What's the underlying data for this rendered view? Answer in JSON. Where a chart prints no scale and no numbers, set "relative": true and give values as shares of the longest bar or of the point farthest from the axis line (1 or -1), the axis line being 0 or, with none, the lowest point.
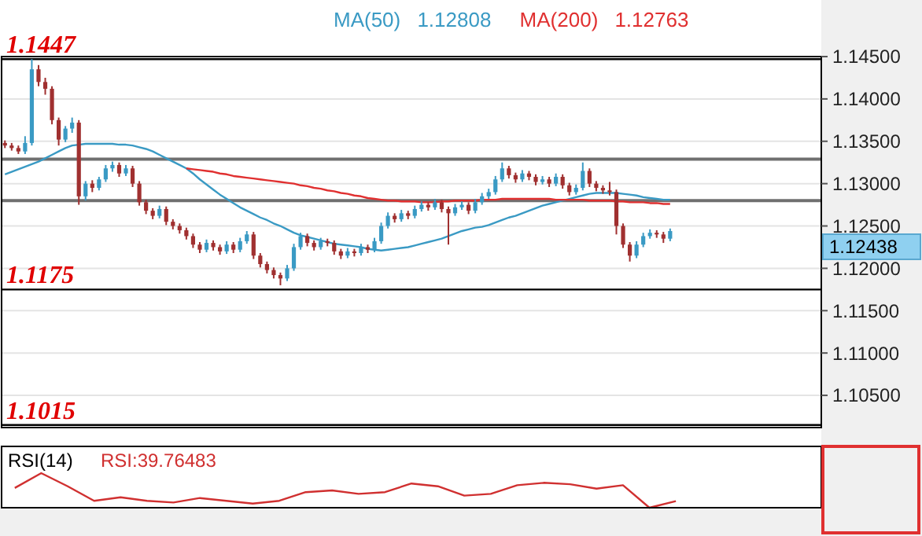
{
  "chart_data": [
    {
      "type": "candlestick",
      "legend": "top",
      "grid": "y",
      "tick_labels": "y",
      "categories": [
        null,
        null,
        null,
        null,
        null,
        null,
        null,
        null,
        null,
        null,
        null,
        null,
        null,
        null,
        null,
        null,
        null,
        null,
        null,
        null,
        null,
        null,
        null,
        null,
        null,
        null,
        null,
        null,
        null,
        null,
        null,
        null,
        null,
        null,
        null,
        null,
        null,
        null,
        null,
        null,
        null,
        null,
        null,
        null,
        null,
        null,
        null,
        null,
        null,
        null,
        null,
        null,
        null,
        null,
        null,
        null,
        null,
        null,
        null,
        null,
        null,
        null,
        null,
        null,
        null,
        null,
        null,
        null,
        null,
        null,
        null,
        null,
        null,
        null,
        null,
        null,
        null,
        null,
        null,
        null,
        null,
        null,
        null,
        null,
        null,
        null,
        null,
        null,
        null,
        null,
        null,
        null,
        null,
        null,
        null,
        null,
        null,
        null,
        null,
        null,
        null,
        null,
        null,
        null,
        null,
        null,
        null,
        null,
        null,
        null,
        null,
        null,
        null,
        null,
        null,
        null,
        null,
        null,
        null,
        null,
        null,
        null
      ],
      "ylim": [
        1.1012,
        1.145
      ],
      "yticks": [
        {
          "value": 1.145,
          "label": "1.14500"
        },
        {
          "value": 1.14,
          "label": "1.14000"
        },
        {
          "value": 1.135,
          "label": "1.13500"
        },
        {
          "value": 1.13,
          "label": "1.13000"
        },
        {
          "value": 1.125,
          "label": "1.12500"
        },
        {
          "value": 1.12,
          "label": "1.12000"
        },
        {
          "value": 1.115,
          "label": "1.11500"
        },
        {
          "value": 1.11,
          "label": "1.11000"
        },
        {
          "value": 1.105,
          "label": "1.10500"
        }
      ],
      "ohlc": [
        [
          1.1348,
          1.1351,
          1.1342,
          1.1345
        ],
        [
          1.1345,
          1.1348,
          1.1339,
          1.1342
        ],
        [
          1.1342,
          1.1345,
          1.1335,
          1.1338
        ],
        [
          1.1338,
          1.1356,
          1.1335,
          1.1348
        ],
        [
          1.1348,
          1.1447,
          1.1345,
          1.1435
        ],
        [
          1.1435,
          1.144,
          1.1415,
          1.142
        ],
        [
          1.142,
          1.1425,
          1.1405,
          1.1412
        ],
        [
          1.1412,
          1.1415,
          1.137,
          1.1375
        ],
        [
          1.1375,
          1.1378,
          1.1345,
          1.1352
        ],
        [
          1.1352,
          1.1368,
          1.1349,
          1.1365
        ],
        [
          1.1365,
          1.1378,
          1.136,
          1.1372
        ],
        [
          1.1372,
          1.1375,
          1.1275,
          1.1285
        ],
        [
          1.1285,
          1.1303,
          1.128,
          1.13
        ],
        [
          1.13,
          1.1304,
          1.129,
          1.1295
        ],
        [
          1.1295,
          1.1308,
          1.1292,
          1.1305
        ],
        [
          1.1305,
          1.1322,
          1.1302,
          1.1318
        ],
        [
          1.1318,
          1.1326,
          1.1314,
          1.1322
        ],
        [
          1.1322,
          1.1325,
          1.1308,
          1.1312
        ],
        [
          1.1312,
          1.1322,
          1.1309,
          1.1318
        ],
        [
          1.1318,
          1.1321,
          1.1296,
          1.13
        ],
        [
          1.13,
          1.1303,
          1.1274,
          1.1278
        ],
        [
          1.1278,
          1.1281,
          1.1264,
          1.1268
        ],
        [
          1.1268,
          1.1271,
          1.1258,
          1.1262
        ],
        [
          1.1262,
          1.1274,
          1.1259,
          1.127
        ],
        [
          1.127,
          1.1273,
          1.1251,
          1.1255
        ],
        [
          1.1255,
          1.1258,
          1.1246,
          1.125
        ],
        [
          1.125,
          1.1253,
          1.1241,
          1.1245
        ],
        [
          1.1245,
          1.1248,
          1.1234,
          1.1238
        ],
        [
          1.1238,
          1.1241,
          1.1224,
          1.1228
        ],
        [
          1.1228,
          1.1231,
          1.1218,
          1.1222
        ],
        [
          1.1222,
          1.1234,
          1.1219,
          1.123
        ],
        [
          1.123,
          1.1233,
          1.1221,
          1.1225
        ],
        [
          1.1225,
          1.1228,
          1.1216,
          1.122
        ],
        [
          1.122,
          1.1232,
          1.1217,
          1.1228
        ],
        [
          1.1228,
          1.1231,
          1.1218,
          1.1222
        ],
        [
          1.1222,
          1.1236,
          1.1219,
          1.1232
        ],
        [
          1.1232,
          1.1244,
          1.1229,
          1.124
        ],
        [
          1.124,
          1.1243,
          1.1211,
          1.1215
        ],
        [
          1.1215,
          1.1218,
          1.1201,
          1.1205
        ],
        [
          1.1205,
          1.1208,
          1.1194,
          1.1198
        ],
        [
          1.1198,
          1.1201,
          1.1188,
          1.1192
        ],
        [
          1.1192,
          1.1195,
          1.118,
          1.1188
        ],
        [
          1.1188,
          1.1204,
          1.1185,
          1.12
        ],
        [
          1.12,
          1.1229,
          1.1197,
          1.1225
        ],
        [
          1.1225,
          1.1242,
          1.1222,
          1.1238
        ],
        [
          1.1238,
          1.1241,
          1.1226,
          1.123
        ],
        [
          1.123,
          1.1233,
          1.1221,
          1.1225
        ],
        [
          1.1225,
          1.1236,
          1.1222,
          1.1232
        ],
        [
          1.1232,
          1.1235,
          1.1226,
          1.123
        ],
        [
          1.123,
          1.1233,
          1.1216,
          1.122
        ],
        [
          1.122,
          1.1223,
          1.1211,
          1.1215
        ],
        [
          1.1215,
          1.1224,
          1.1212,
          1.122
        ],
        [
          1.122,
          1.1223,
          1.1214,
          1.1218
        ],
        [
          1.1218,
          1.1229,
          1.1215,
          1.1225
        ],
        [
          1.1225,
          1.1228,
          1.1218,
          1.1222
        ],
        [
          1.1222,
          1.1236,
          1.1219,
          1.1232
        ],
        [
          1.1232,
          1.1254,
          1.1229,
          1.125
        ],
        [
          1.125,
          1.1266,
          1.1247,
          1.1262
        ],
        [
          1.1262,
          1.1265,
          1.1254,
          1.1258
        ],
        [
          1.1258,
          1.1269,
          1.1255,
          1.1265
        ],
        [
          1.1265,
          1.1268,
          1.1258,
          1.1262
        ],
        [
          1.1262,
          1.1274,
          1.1259,
          1.127
        ],
        [
          1.127,
          1.1279,
          1.1267,
          1.1275
        ],
        [
          1.1275,
          1.1278,
          1.1268,
          1.1272
        ],
        [
          1.1272,
          1.1282,
          1.1269,
          1.1278
        ],
        [
          1.1278,
          1.1281,
          1.1266,
          1.127
        ],
        [
          1.127,
          1.1273,
          1.1228,
          1.1265
        ],
        [
          1.1265,
          1.1276,
          1.1262,
          1.1272
        ],
        [
          1.1272,
          1.1279,
          1.1269,
          1.1275
        ],
        [
          1.1275,
          1.1278,
          1.1264,
          1.1268
        ],
        [
          1.1268,
          1.1282,
          1.1265,
          1.1278
        ],
        [
          1.1278,
          1.1289,
          1.1275,
          1.1285
        ],
        [
          1.1285,
          1.1294,
          1.1282,
          1.129
        ],
        [
          1.129,
          1.1309,
          1.1287,
          1.1305
        ],
        [
          1.1305,
          1.1325,
          1.1302,
          1.1318
        ],
        [
          1.1318,
          1.1321,
          1.1306,
          1.131
        ],
        [
          1.131,
          1.1313,
          1.1301,
          1.1305
        ],
        [
          1.1305,
          1.1316,
          1.1302,
          1.1312
        ],
        [
          1.1312,
          1.1315,
          1.1304,
          1.1308
        ],
        [
          1.1308,
          1.1311,
          1.1298,
          1.1302
        ],
        [
          1.1302,
          1.1309,
          1.1299,
          1.1305
        ],
        [
          1.1305,
          1.1308,
          1.1296,
          1.13
        ],
        [
          1.13,
          1.1312,
          1.1297,
          1.1308
        ],
        [
          1.1308,
          1.1311,
          1.1294,
          1.1298
        ],
        [
          1.1298,
          1.1301,
          1.1286,
          1.129
        ],
        [
          1.129,
          1.1299,
          1.1287,
          1.1295
        ],
        [
          1.1295,
          1.1325,
          1.1292,
          1.1315
        ],
        [
          1.1315,
          1.1318,
          1.1296,
          1.13
        ],
        [
          1.13,
          1.1303,
          1.1291,
          1.1295
        ],
        [
          1.1295,
          1.1298,
          1.1288,
          1.1292
        ],
        [
          1.1292,
          1.1302,
          1.1286,
          1.129
        ],
        [
          1.129,
          1.1293,
          1.124,
          1.125
        ],
        [
          1.125,
          1.1253,
          1.1224,
          1.1228
        ],
        [
          1.1228,
          1.1231,
          1.1208,
          1.1215
        ],
        [
          1.1215,
          1.1232,
          1.1212,
          1.1228
        ],
        [
          1.1228,
          1.1242,
          1.1225,
          1.1238
        ],
        [
          1.1238,
          1.1246,
          1.1235,
          1.1242
        ],
        [
          1.1242,
          1.1245,
          1.1236,
          1.124
        ],
        [
          1.124,
          1.1243,
          1.123,
          1.1235
        ],
        [
          1.1235,
          1.1247,
          1.1232,
          1.1244
        ],
        null,
        null,
        null,
        null,
        null,
        null,
        null,
        null,
        null,
        null,
        null,
        null,
        null,
        null,
        null,
        null,
        null,
        null,
        null,
        null,
        null,
        null
      ],
      "series": [
        {
          "type": "line",
          "name": "MA(50)",
          "color": "#3a9ac4",
          "values": [
            1.1311,
            1.1314,
            1.1317,
            1.132,
            1.1323,
            1.1326,
            1.133,
            1.1334,
            1.1338,
            1.1342,
            1.1345,
            1.1346,
            1.1347,
            1.1347,
            1.1347,
            1.1347,
            1.1347,
            1.1346,
            1.1346,
            1.1345,
            1.1343,
            1.1341,
            1.1338,
            1.1334,
            1.133,
            1.1326,
            1.1322,
            1.1318,
            1.1312,
            1.1305,
            1.1299,
            1.1293,
            1.1287,
            1.1282,
            1.1277,
            1.1272,
            1.1268,
            1.1264,
            1.126,
            1.1257,
            1.1253,
            1.125,
            1.1246,
            1.1242,
            1.1239,
            1.1237,
            1.1235,
            1.1233,
            1.1231,
            1.1229,
            1.1228,
            1.1227,
            1.1226,
            1.1225,
            1.1223,
            1.1222,
            1.1221,
            1.1222,
            1.1223,
            1.1224,
            1.1225,
            1.1227,
            1.1229,
            1.1231,
            1.1233,
            1.1235,
            1.1238,
            1.1241,
            1.1244,
            1.1246,
            1.1248,
            1.1249,
            1.1251,
            1.1254,
            1.1257,
            1.126,
            1.1262,
            1.1265,
            1.1268,
            1.1271,
            1.1274,
            1.1276,
            1.1278,
            1.128,
            1.1282,
            1.1284,
            1.1286,
            1.1288,
            1.1289,
            1.1289,
            1.1289,
            1.1289,
            1.1288,
            1.1287,
            1.1286,
            1.1284,
            1.1283,
            1.1282,
            1.1281,
            1.1281,
            null,
            null,
            null,
            null,
            null,
            null,
            null,
            null,
            null,
            null,
            null,
            null,
            null,
            null,
            null,
            null,
            null,
            null,
            null,
            null,
            null,
            null
          ]
        },
        {
          "type": "line",
          "name": "MA(200)",
          "color": "#e03030",
          "values": [
            null,
            null,
            null,
            null,
            null,
            null,
            null,
            null,
            null,
            null,
            null,
            null,
            null,
            null,
            null,
            null,
            null,
            null,
            null,
            null,
            null,
            null,
            null,
            null,
            null,
            null,
            null,
            1.1318,
            1.1317,
            1.1316,
            1.1315,
            1.1314,
            1.1312,
            1.1311,
            1.1309,
            1.1308,
            1.1307,
            1.1306,
            1.1305,
            1.1304,
            1.1303,
            1.1302,
            1.1301,
            1.13,
            1.1298,
            1.1297,
            1.1295,
            1.1294,
            1.1292,
            1.1291,
            1.1289,
            1.1288,
            1.1286,
            1.1285,
            1.1283,
            1.1282,
            1.1281,
            1.128,
            1.128,
            1.1279,
            1.1279,
            1.1279,
            1.1278,
            1.1278,
            1.1278,
            1.1279,
            1.1279,
            1.128,
            1.128,
            1.128,
            1.128,
            1.1281,
            1.1281,
            1.1281,
            1.1282,
            1.1282,
            1.1282,
            1.1282,
            1.1282,
            1.1282,
            1.1282,
            1.1282,
            1.1281,
            1.1281,
            1.1281,
            1.1281,
            1.1281,
            1.128,
            1.128,
            1.128,
            1.128,
            1.1279,
            1.1279,
            1.1278,
            1.1278,
            1.1278,
            1.1277,
            1.1277,
            1.1276,
            1.1276,
            null,
            null,
            null,
            null,
            null,
            null,
            null,
            null,
            null,
            null,
            null,
            null,
            null,
            null,
            null,
            null,
            null,
            null,
            null,
            null,
            null,
            null
          ]
        }
      ],
      "annotations": [
        "1.12808",
        "1.12763",
        "1.12438"
      ],
      "ref_lines": [
        {
          "axis": "y",
          "value": 1.1447,
          "label": "1.1447",
          "color": "#000000"
        },
        {
          "axis": "y",
          "value": 1.1175,
          "label": "1.1175",
          "color": "#000000"
        },
        {
          "axis": "y",
          "value": 1.1015,
          "label": "1.1015",
          "color": "#000000"
        },
        {
          "axis": "y",
          "value": 1.1329,
          "color": "#707070"
        },
        {
          "axis": "y",
          "value": 1.128,
          "color": "#707070"
        }
      ]
    },
    {
      "type": "line",
      "relative": true,
      "title": "RSI(14)",
      "annotations": [
        "RSI:39.76483"
      ],
      "categories": [
        null,
        null,
        null,
        null,
        null,
        null,
        null,
        null,
        null,
        null,
        null,
        null,
        null,
        null,
        null,
        null,
        null,
        null,
        null,
        null,
        null,
        null,
        null,
        null,
        null,
        null,
        null,
        null,
        null,
        null,
        null
      ],
      "series": [
        {
          "color": "#d03030",
          "values": [
            0.57,
            1,
            0.62,
            0.2,
            0.3,
            0.2,
            0.15,
            0.28,
            0.2,
            0.12,
            0.2,
            0.45,
            0.5,
            0.4,
            0.45,
            0.7,
            0.62,
            0.35,
            0.4,
            0.65,
            0.72,
            0.68,
            0.55,
            0.65,
            0,
            0.19,
            null,
            null,
            null,
            null,
            null
          ]
        }
      ]
    }
  ]
}
